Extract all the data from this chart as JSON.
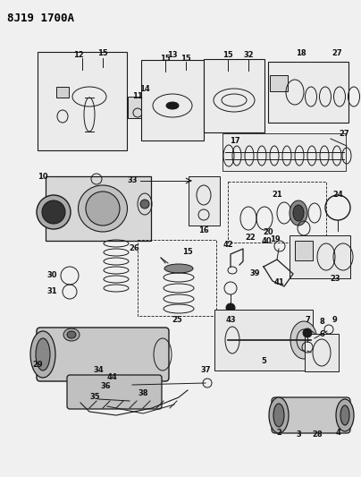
{
  "title_text": "8J19 1700A",
  "bg_color": "#f0f0f0",
  "fig_width": 4.04,
  "fig_height": 5.33,
  "dpi": 100,
  "line_color": "#1a1a1a",
  "gray_fill": "#c8c8c8",
  "light_gray": "#e0e0e0",
  "label_fontsize": 5.5,
  "label_color": "#111111"
}
